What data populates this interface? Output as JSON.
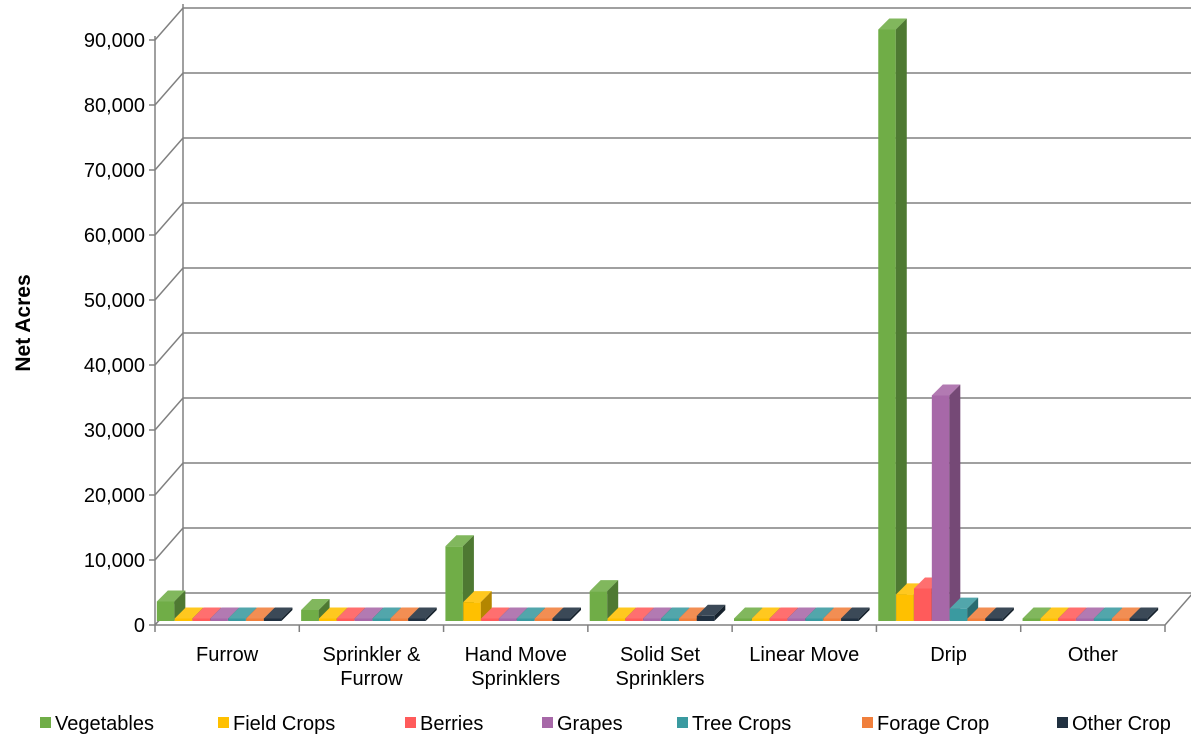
{
  "chart_data": {
    "type": "bar",
    "title": "",
    "xlabel": "",
    "ylabel": "Net Acres",
    "ylim": [
      0,
      90000
    ],
    "yticks": [
      0,
      10000,
      20000,
      30000,
      40000,
      50000,
      60000,
      70000,
      80000,
      90000
    ],
    "ytick_labels": [
      "0",
      "10,000",
      "20,000",
      "30,000",
      "40,000",
      "50,000",
      "60,000",
      "70,000",
      "80,000",
      "90,000"
    ],
    "grid": true,
    "three_d": true,
    "legend_position": "bottom",
    "categories": [
      [
        "Furrow"
      ],
      [
        "Sprinkler &",
        "Furrow"
      ],
      [
        "Hand Move",
        "Sprinklers"
      ],
      [
        "Solid Set",
        "Sprinklers"
      ],
      [
        "Linear Move"
      ],
      [
        "Drip"
      ],
      [
        "Other"
      ]
    ],
    "series": [
      {
        "name": "Vegetables",
        "color": "#70AD47",
        "values": [
          3000,
          1700,
          11500,
          4600,
          150,
          91000,
          100
        ]
      },
      {
        "name": "Field Crops",
        "color": "#FFC000",
        "values": [
          200,
          100,
          2900,
          100,
          100,
          4100,
          50
        ]
      },
      {
        "name": "Berries",
        "color": "#FF5B5B",
        "values": [
          100,
          50,
          200,
          50,
          50,
          5000,
          50
        ]
      },
      {
        "name": "Grapes",
        "color": "#A768A8",
        "values": [
          100,
          50,
          50,
          50,
          50,
          34700,
          50
        ]
      },
      {
        "name": "Tree Crops",
        "color": "#3A9AA0",
        "values": [
          100,
          50,
          50,
          50,
          50,
          1900,
          50
        ]
      },
      {
        "name": "Forage Crop",
        "color": "#F07F3C",
        "values": [
          100,
          50,
          50,
          100,
          50,
          100,
          50
        ]
      },
      {
        "name": "Other Crop",
        "color": "#203040",
        "values": [
          50,
          50,
          50,
          800,
          50,
          50,
          50
        ]
      }
    ]
  }
}
